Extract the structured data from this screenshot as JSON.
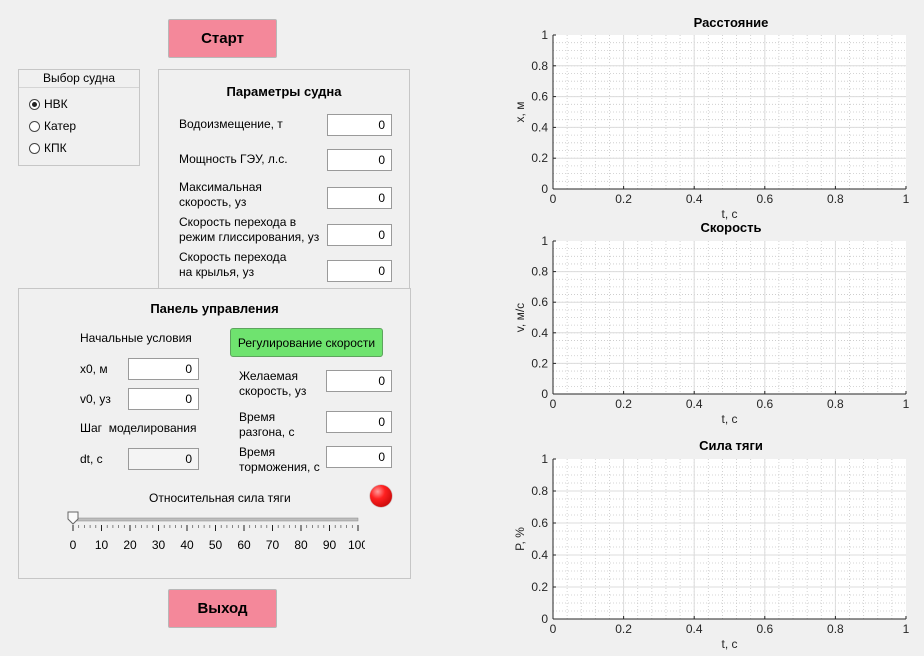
{
  "buttons": {
    "start": "Старт",
    "exit": "Выход",
    "speed_control": "Регулирование скорости"
  },
  "vessel_select": {
    "title": "Выбор судна",
    "options": [
      {
        "label": "НВК",
        "selected": true
      },
      {
        "label": "Катер",
        "selected": false
      },
      {
        "label": "КПК",
        "selected": false
      }
    ]
  },
  "params": {
    "title": "Параметры судна",
    "fields": [
      {
        "label": "Водоизмещение, т",
        "value": "0"
      },
      {
        "label": "Мощность ГЭУ, л.с.",
        "value": "0"
      },
      {
        "label": "Максимальная\nскорость, уз",
        "value": "0"
      },
      {
        "label": "Скорость перехода в\nрежим глиссирования, уз",
        "value": "0"
      },
      {
        "label": "Скорость перехода\nна крылья, уз",
        "value": "0"
      }
    ]
  },
  "control": {
    "title": "Панель управления",
    "initial_conditions": "Начальные условия",
    "x0_label": "x0, м",
    "x0_value": "0",
    "v0_label": "v0, уз",
    "v0_value": "0",
    "step_title": "Шаг  моделирования",
    "dt_label": "dt, с",
    "dt_value": "0",
    "desired_speed_label": "Желаемая\nскорость, уз",
    "desired_speed_value": "0",
    "accel_time_label": "Время\nразгона, с",
    "accel_time_value": "0",
    "brake_time_label": "Время\nторможения, с",
    "brake_time_value": "0",
    "thrust_label": "Относительная сила тяги",
    "slider": {
      "value": 0,
      "min": 0,
      "max": 100,
      "ticks": [
        "0",
        "10",
        "20",
        "30",
        "40",
        "50",
        "60",
        "70",
        "80",
        "90",
        "100"
      ]
    },
    "lamp_color": "#ff2020"
  },
  "charts": [
    {
      "title": "Расстояние",
      "ylabel": "x, м",
      "xlabel": "t, c"
    },
    {
      "title": "Скорость",
      "ylabel": "v, м/с",
      "xlabel": "t, c"
    },
    {
      "title": "Сила тяги",
      "ylabel": "P, %",
      "xlabel": "t, c"
    }
  ],
  "axis_ticks": {
    "x": [
      "0",
      "0.2",
      "0.4",
      "0.6",
      "0.8",
      "1"
    ],
    "y": [
      "0",
      "0.2",
      "0.4",
      "0.6",
      "0.8",
      "1"
    ]
  }
}
